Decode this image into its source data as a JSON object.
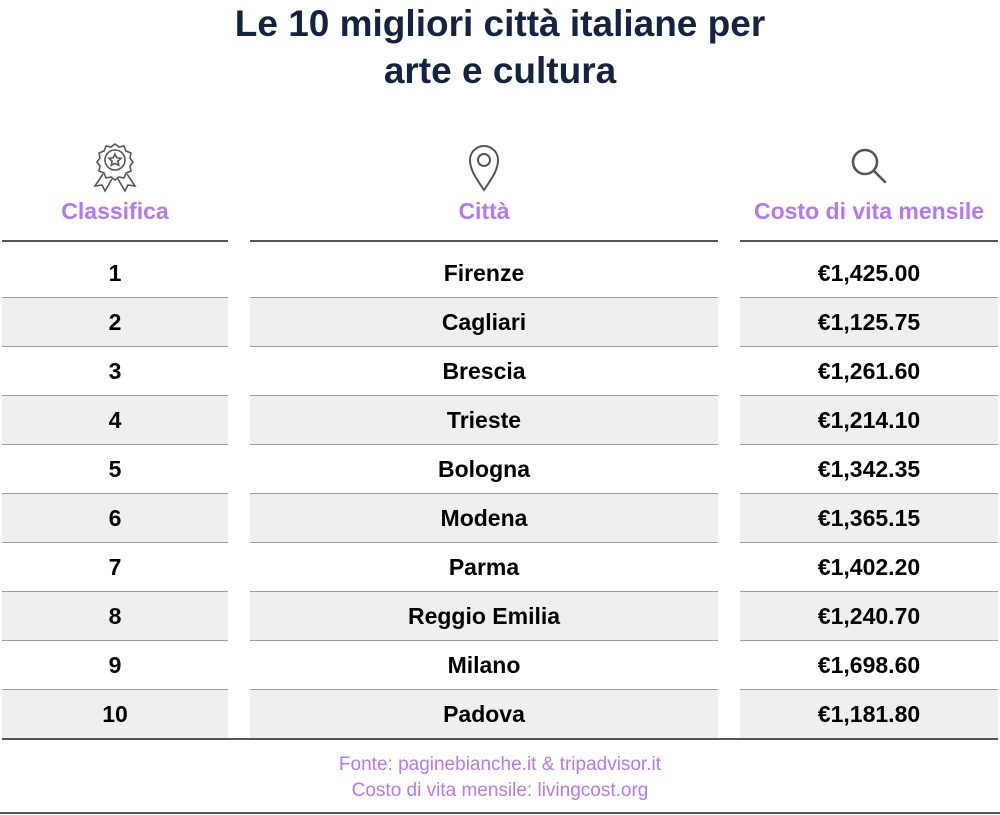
{
  "title": {
    "line1": "Le 10 migliori città italiane per",
    "line2": "arte e cultura"
  },
  "columns": {
    "rank": {
      "label": "Classifica",
      "icon": "award-badge-icon"
    },
    "city": {
      "label": "Città",
      "icon": "map-pin-icon"
    },
    "cost": {
      "label": "Costo di vita mensile",
      "icon": "search-icon"
    }
  },
  "rows": [
    {
      "rank": "1",
      "city": "Firenze",
      "cost": "€1,425.00"
    },
    {
      "rank": "2",
      "city": "Cagliari",
      "cost": "€1,125.75"
    },
    {
      "rank": "3",
      "city": "Brescia",
      "cost": "€1,261.60"
    },
    {
      "rank": "4",
      "city": "Trieste",
      "cost": "€1,214.10"
    },
    {
      "rank": "5",
      "city": "Bologna",
      "cost": "€1,342.35"
    },
    {
      "rank": "6",
      "city": "Modena",
      "cost": "€1,365.15"
    },
    {
      "rank": "7",
      "city": "Parma",
      "cost": "€1,402.20"
    },
    {
      "rank": "8",
      "city": "Reggio Emilia",
      "cost": "€1,240.70"
    },
    {
      "rank": "9",
      "city": "Milano",
      "cost": "€1,698.60"
    },
    {
      "rank": "10",
      "city": "Padova",
      "cost": "€1,181.80"
    }
  ],
  "footer": {
    "line1": "Fonte: paginebianche.it & tripadvisor.it",
    "line2": "Costo di vita mensile: livingcost.org"
  },
  "colors": {
    "title": "#14233f",
    "accent": "#b678ee",
    "row_alt": "#efefef"
  }
}
